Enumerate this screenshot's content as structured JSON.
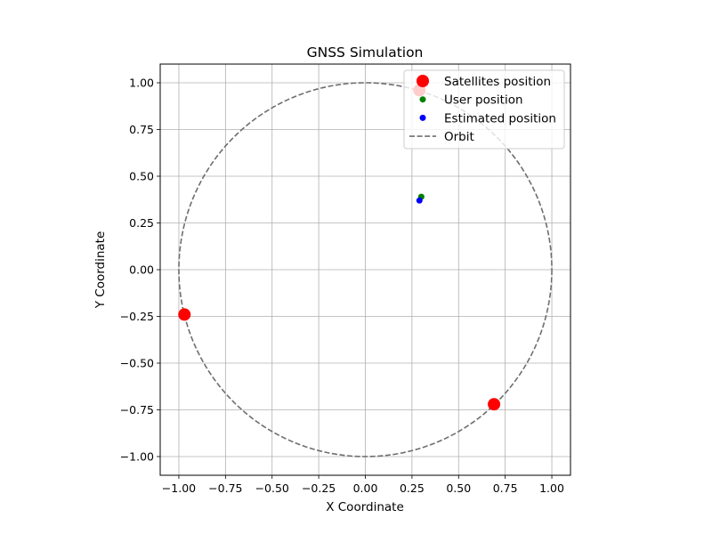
{
  "chart_data": {
    "type": "scatter",
    "title": "GNSS Simulation",
    "xlabel": "X Coordinate",
    "ylabel": "Y Coordinate",
    "xlim": [
      -1.1,
      1.1
    ],
    "ylim": [
      -1.1,
      1.1
    ],
    "xticks": [
      -1.0,
      -0.75,
      -0.5,
      -0.25,
      0.0,
      0.25,
      0.5,
      0.75,
      1.0
    ],
    "yticks": [
      -1.0,
      -0.75,
      -0.5,
      -0.25,
      0.0,
      0.25,
      0.5,
      0.75,
      1.0
    ],
    "xtick_labels": [
      "−1.00",
      "−0.75",
      "−0.50",
      "−0.25",
      "0.00",
      "0.25",
      "0.50",
      "0.75",
      "1.00"
    ],
    "ytick_labels": [
      "−1.00",
      "−0.75",
      "−0.50",
      "−0.25",
      "0.00",
      "0.25",
      "0.50",
      "0.75",
      "1.00"
    ],
    "grid": true,
    "legend_position": "top-right",
    "series": [
      {
        "name": "Satellites position",
        "marker": "circle",
        "color": "#ff0000",
        "points": [
          {
            "x": 0.29,
            "y": 0.96
          },
          {
            "x": -0.97,
            "y": -0.24
          },
          {
            "x": 0.69,
            "y": -0.72
          }
        ]
      },
      {
        "name": "User position",
        "marker": "circle",
        "color": "#008000",
        "points": [
          {
            "x": 0.3,
            "y": 0.39
          }
        ]
      },
      {
        "name": "Estimated position",
        "marker": "circle",
        "color": "#0000ff",
        "points": [
          {
            "x": 0.29,
            "y": 0.37
          }
        ]
      },
      {
        "name": "Orbit",
        "marker": "dashed-line",
        "color": "#6e6e6e",
        "shape": "circle",
        "center": [
          0.0,
          0.0
        ],
        "radius": 1.0
      }
    ]
  }
}
